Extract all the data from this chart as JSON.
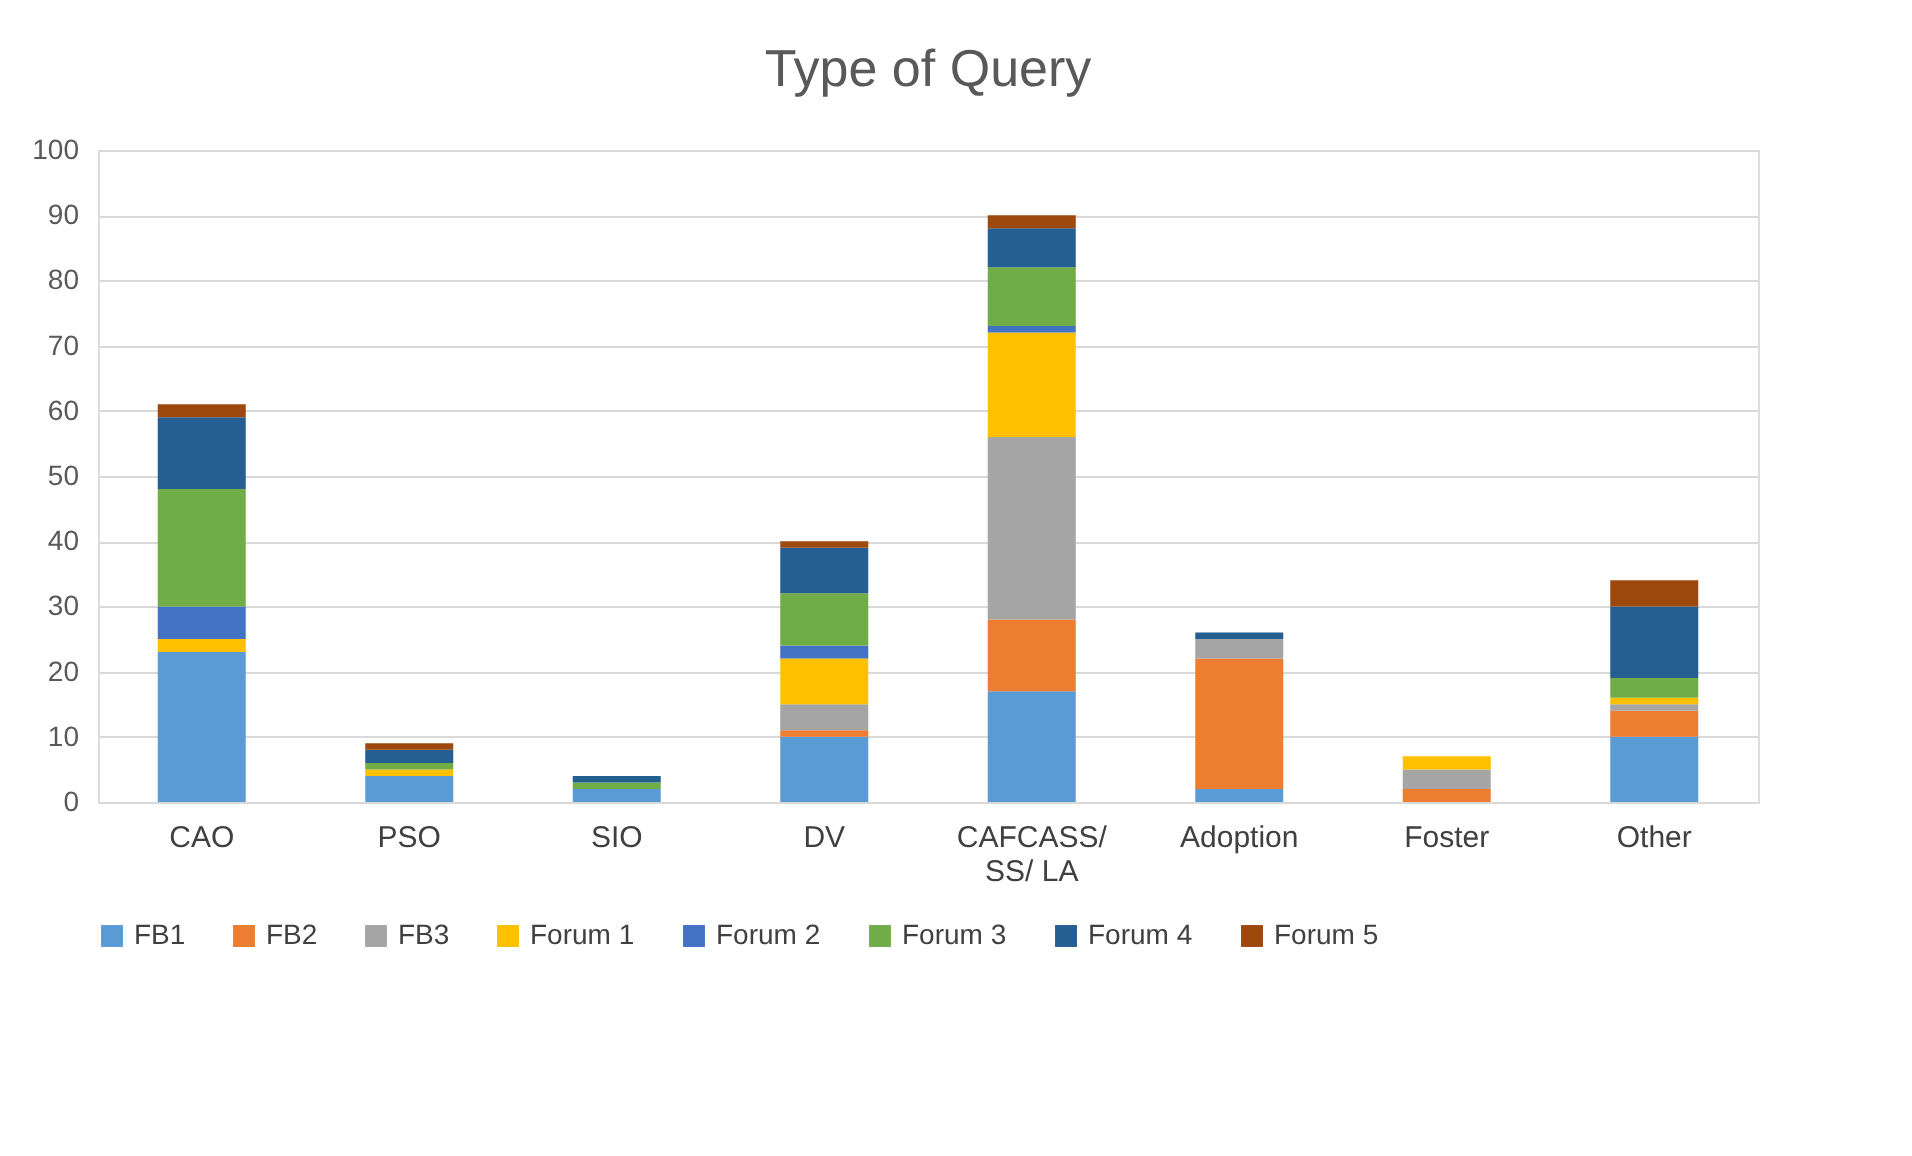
{
  "chart_data": {
    "type": "bar",
    "title": "Type of Query",
    "stacked": true,
    "categories": [
      "CAO",
      "PSO",
      "SIO",
      "DV",
      "CAFCASS/ SS/ LA",
      "Adoption",
      "Foster",
      "Other"
    ],
    "series": [
      {
        "name": "FB1",
        "color": "#5b9bd5",
        "values": [
          23,
          4,
          2,
          10,
          17,
          2,
          0,
          10
        ]
      },
      {
        "name": "FB2",
        "color": "#ed7d31",
        "values": [
          0,
          0,
          0,
          1,
          11,
          20,
          2,
          4
        ]
      },
      {
        "name": "FB3",
        "color": "#a5a5a5",
        "values": [
          0,
          0,
          0,
          4,
          28,
          3,
          3,
          1
        ]
      },
      {
        "name": "Forum 1",
        "color": "#ffc000",
        "values": [
          2,
          1,
          0,
          7,
          16,
          0,
          2,
          1
        ]
      },
      {
        "name": "Forum 2",
        "color": "#4472c4",
        "values": [
          5,
          0,
          0,
          2,
          1,
          0,
          0,
          0
        ]
      },
      {
        "name": "Forum 3",
        "color": "#70ad47",
        "values": [
          18,
          1,
          1,
          8,
          9,
          0,
          0,
          3
        ]
      },
      {
        "name": "Forum 4",
        "color": "#255e91",
        "values": [
          11,
          2,
          1,
          7,
          6,
          1,
          0,
          11
        ]
      },
      {
        "name": "Forum 5",
        "color": "#9e480e",
        "values": [
          2,
          1,
          0,
          1,
          2,
          0,
          0,
          4
        ]
      }
    ],
    "ylim": [
      0,
      100
    ],
    "yticks": [
      0,
      10,
      20,
      30,
      40,
      50,
      60,
      70,
      80,
      90,
      100
    ],
    "grid": "y",
    "legend": "bottom"
  }
}
